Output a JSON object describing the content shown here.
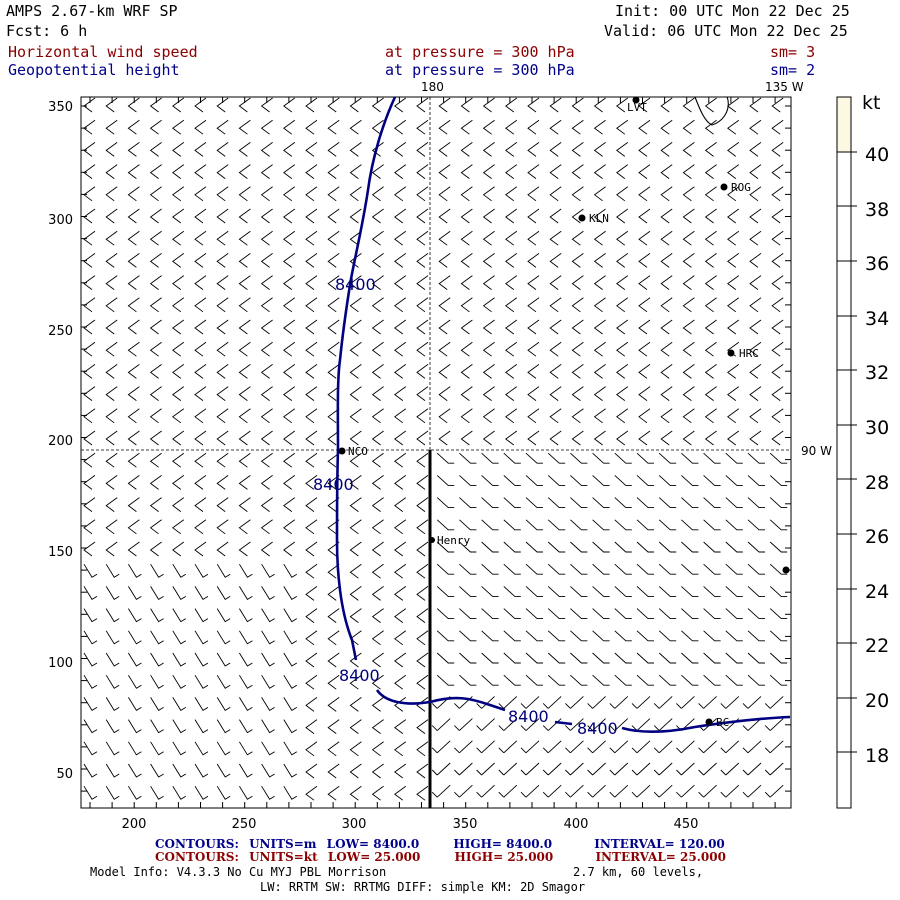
{
  "header": {
    "model": "AMPS 2.67-km WRF SP",
    "forecast": "Fcst:    6 h",
    "init": "Init: 00 UTC Mon 22 Dec 25",
    "valid": "Valid: 06 UTC Mon 22 Dec 25",
    "fields": [
      {
        "name": "Horizontal wind speed",
        "level": "at pressure =  300 hPa",
        "sm": "sm= 3"
      },
      {
        "name": "Geopotential height",
        "level": "at pressure =  300 hPa",
        "sm": "sm= 2"
      }
    ]
  },
  "map": {
    "x_ticks": [
      "200",
      "250",
      "300",
      "350",
      "400",
      "450"
    ],
    "y_ticks": [
      "350",
      "300",
      "250",
      "200",
      "150",
      "100",
      "50"
    ],
    "meridian_labels": {
      "top": "180",
      "top_right": "135 W",
      "right": "90 W"
    },
    "contour_labels": [
      "8400",
      "8400",
      "8400",
      "8400",
      "8400"
    ],
    "stations": [
      {
        "name": "LVT"
      },
      {
        "name": "ROG"
      },
      {
        "name": "KLN"
      },
      {
        "name": "HRC"
      },
      {
        "name": "NCO"
      },
      {
        "name": "Henry"
      },
      {
        "name": "BC"
      },
      {
        "name": ""
      }
    ]
  },
  "colorbar": {
    "unit": "kt",
    "ticks": [
      "40",
      "38",
      "36",
      "34",
      "32",
      "30",
      "28",
      "26",
      "24",
      "22",
      "20",
      "18"
    ],
    "fill_color": "#fdf8e2"
  },
  "footer": {
    "contours_height": {
      "label": "CONTOURS:",
      "units": "UNITS=m",
      "low": "LOW=  8400.0",
      "high": "HIGH=  8400.0",
      "interval": "INTERVAL=   120.00"
    },
    "contours_wind": {
      "label": "CONTOURS:",
      "units": "UNITS=kt",
      "low": "LOW=  25.000",
      "high": "HIGH=  25.000",
      "interval": "INTERVAL=   25.000"
    },
    "model_info": "Model Info: V4.3.3    No Cu    MYJ PBL   Morrison",
    "resolution": "2.7 km,  60 levels,",
    "physics": "LW: RRTM SW: RRTMG   DIFF: simple KM: 2D Smagor"
  },
  "colors": {
    "height_contour": "#00007a",
    "wind_text": "#8b0000",
    "height_text": "#00008b"
  }
}
